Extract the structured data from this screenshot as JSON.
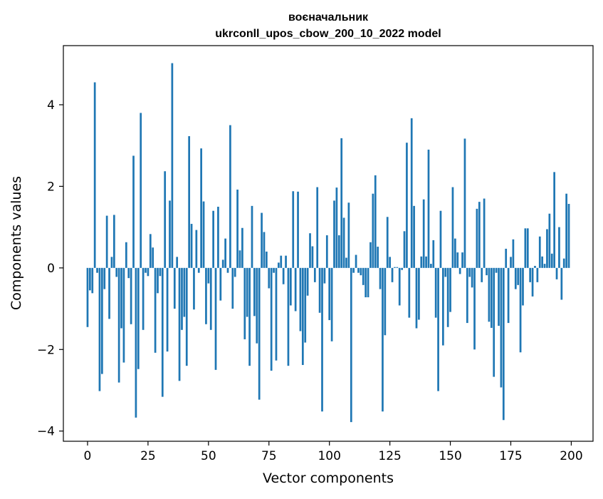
{
  "chart_data": {
    "type": "bar",
    "title_line1": "воєначальник",
    "title_line2": "ukrconll_upos_cbow_200_10_2022 model",
    "xlabel": "Vector components",
    "ylabel": "Components values",
    "xlim": [
      -10,
      209
    ],
    "ylim": [
      -4.25,
      5.45
    ],
    "xticks": [
      0,
      25,
      50,
      75,
      100,
      125,
      150,
      175,
      200
    ],
    "yticks": [
      -4,
      -2,
      0,
      2,
      4
    ],
    "ytick_labels": [
      "−4",
      "−2",
      "0",
      "2",
      "4"
    ],
    "grid": false,
    "bar_color": "#1f77b4",
    "x": [
      0,
      1,
      2,
      3,
      4,
      5,
      6,
      7,
      8,
      9,
      10,
      11,
      12,
      13,
      14,
      15,
      16,
      17,
      18,
      19,
      20,
      21,
      22,
      23,
      24,
      25,
      26,
      27,
      28,
      29,
      30,
      31,
      32,
      33,
      34,
      35,
      36,
      37,
      38,
      39,
      40,
      41,
      42,
      43,
      44,
      45,
      46,
      47,
      48,
      49,
      50,
      51,
      52,
      53,
      54,
      55,
      56,
      57,
      58,
      59,
      60,
      61,
      62,
      63,
      64,
      65,
      66,
      67,
      68,
      69,
      70,
      71,
      72,
      73,
      74,
      75,
      76,
      77,
      78,
      79,
      80,
      81,
      82,
      83,
      84,
      85,
      86,
      87,
      88,
      89,
      90,
      91,
      92,
      93,
      94,
      95,
      96,
      97,
      98,
      99,
      100,
      101,
      102,
      103,
      104,
      105,
      106,
      107,
      108,
      109,
      110,
      111,
      112,
      113,
      114,
      115,
      116,
      117,
      118,
      119,
      120,
      121,
      122,
      123,
      124,
      125,
      126,
      127,
      128,
      129,
      130,
      131,
      132,
      133,
      134,
      135,
      136,
      137,
      138,
      139,
      140,
      141,
      142,
      143,
      144,
      145,
      146,
      147,
      148,
      149,
      150,
      151,
      152,
      153,
      154,
      155,
      156,
      157,
      158,
      159,
      160,
      161,
      162,
      163,
      164,
      165,
      166,
      167,
      168,
      169,
      170,
      171,
      172,
      173,
      174,
      175,
      176,
      177,
      178,
      179,
      180,
      181,
      182,
      183,
      184,
      185,
      186,
      187,
      188,
      189,
      190,
      191,
      192,
      193,
      194,
      195,
      196,
      197,
      198,
      199
    ],
    "values": [
      -1.45,
      -0.55,
      -0.62,
      4.55,
      -0.12,
      -3.02,
      -2.6,
      -0.52,
      1.28,
      -1.25,
      0.27,
      1.3,
      -0.22,
      -2.81,
      -1.48,
      -2.32,
      0.63,
      -0.25,
      -1.38,
      2.75,
      -3.67,
      -2.48,
      3.8,
      -1.52,
      -0.12,
      -0.2,
      0.83,
      0.5,
      -2.08,
      -0.62,
      -0.2,
      -3.16,
      2.37,
      -2.05,
      1.65,
      5.02,
      -1.0,
      0.27,
      -2.77,
      -1.52,
      -1.2,
      -2.4,
      3.23,
      1.08,
      -1.02,
      0.93,
      -0.12,
      2.93,
      1.63,
      -1.38,
      -0.38,
      -1.52,
      1.4,
      -2.5,
      1.5,
      -0.8,
      0.2,
      0.72,
      -0.12,
      3.5,
      -1.0,
      -0.22,
      1.92,
      0.43,
      0.98,
      -1.75,
      -1.2,
      -2.4,
      1.52,
      -1.18,
      -1.85,
      -3.23,
      1.35,
      0.88,
      0.4,
      -0.5,
      -2.52,
      -0.12,
      -2.27,
      0.13,
      0.3,
      -0.4,
      0.3,
      -2.4,
      -0.92,
      1.88,
      -1.06,
      1.87,
      -1.55,
      -2.38,
      -1.83,
      -0.68,
      0.85,
      0.53,
      -0.35,
      1.98,
      -1.1,
      -3.52,
      -0.38,
      0.8,
      -1.28,
      -1.8,
      1.65,
      1.97,
      0.8,
      3.18,
      1.23,
      0.25,
      1.6,
      -3.78,
      -0.12,
      0.32,
      -0.12,
      -0.18,
      -0.42,
      -0.72,
      -0.72,
      0.63,
      1.82,
      2.27,
      0.52,
      -0.52,
      -3.52,
      -1.65,
      1.25,
      0.27,
      -0.35,
      0.02,
      0.02,
      -0.92,
      -0.05,
      0.9,
      3.07,
      -1.22,
      3.67,
      1.52,
      -1.48,
      -1.27,
      0.28,
      1.68,
      0.28,
      2.9,
      0.1,
      0.68,
      -1.22,
      -3.02,
      1.4,
      -1.9,
      -0.22,
      -1.45,
      -1.08,
      1.98,
      0.72,
      0.38,
      -0.15,
      0.38,
      3.17,
      -1.35,
      -0.22,
      -0.48,
      -2.0,
      1.45,
      1.62,
      -0.35,
      1.7,
      -0.18,
      -1.32,
      -1.47,
      -2.67,
      -0.12,
      -1.42,
      -2.93,
      -3.73,
      0.47,
      -1.35,
      0.27,
      0.7,
      -0.52,
      -0.42,
      -2.07,
      -0.92,
      0.97,
      0.97,
      -0.35,
      -0.7,
      0.05,
      -0.35,
      0.77,
      0.28,
      0.1,
      0.95,
      1.33,
      0.35,
      2.35,
      -0.28,
      1.0,
      -0.78,
      0.23,
      1.82,
      1.57
    ]
  }
}
